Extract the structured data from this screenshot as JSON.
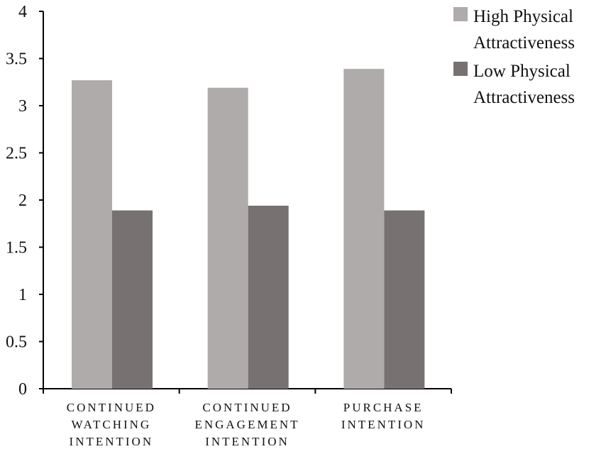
{
  "chart_data": {
    "type": "bar",
    "categories": [
      [
        "CONTINUED",
        "WATCHING",
        "INTENTION"
      ],
      [
        "CONTINUED",
        "ENGAGEMENT",
        "INTENTION"
      ],
      [
        "PURCHASE",
        "INTENTION"
      ]
    ],
    "series": [
      {
        "name": [
          "High Physical",
          "Attractiveness"
        ],
        "values": [
          3.27,
          3.19,
          3.39
        ],
        "color": "#aeabaa"
      },
      {
        "name": [
          "Low Physical",
          "Attractiveness"
        ],
        "values": [
          1.89,
          1.94,
          1.89
        ],
        "color": "#777271"
      }
    ],
    "yticks": [
      "0",
      "0.5",
      "1",
      "1.5",
      "2",
      "2.5",
      "3",
      "3.5",
      "4"
    ],
    "ylim": [
      0,
      4
    ],
    "grid": false,
    "legend_position": "top-right",
    "title": "",
    "xlabel": "",
    "ylabel": ""
  }
}
